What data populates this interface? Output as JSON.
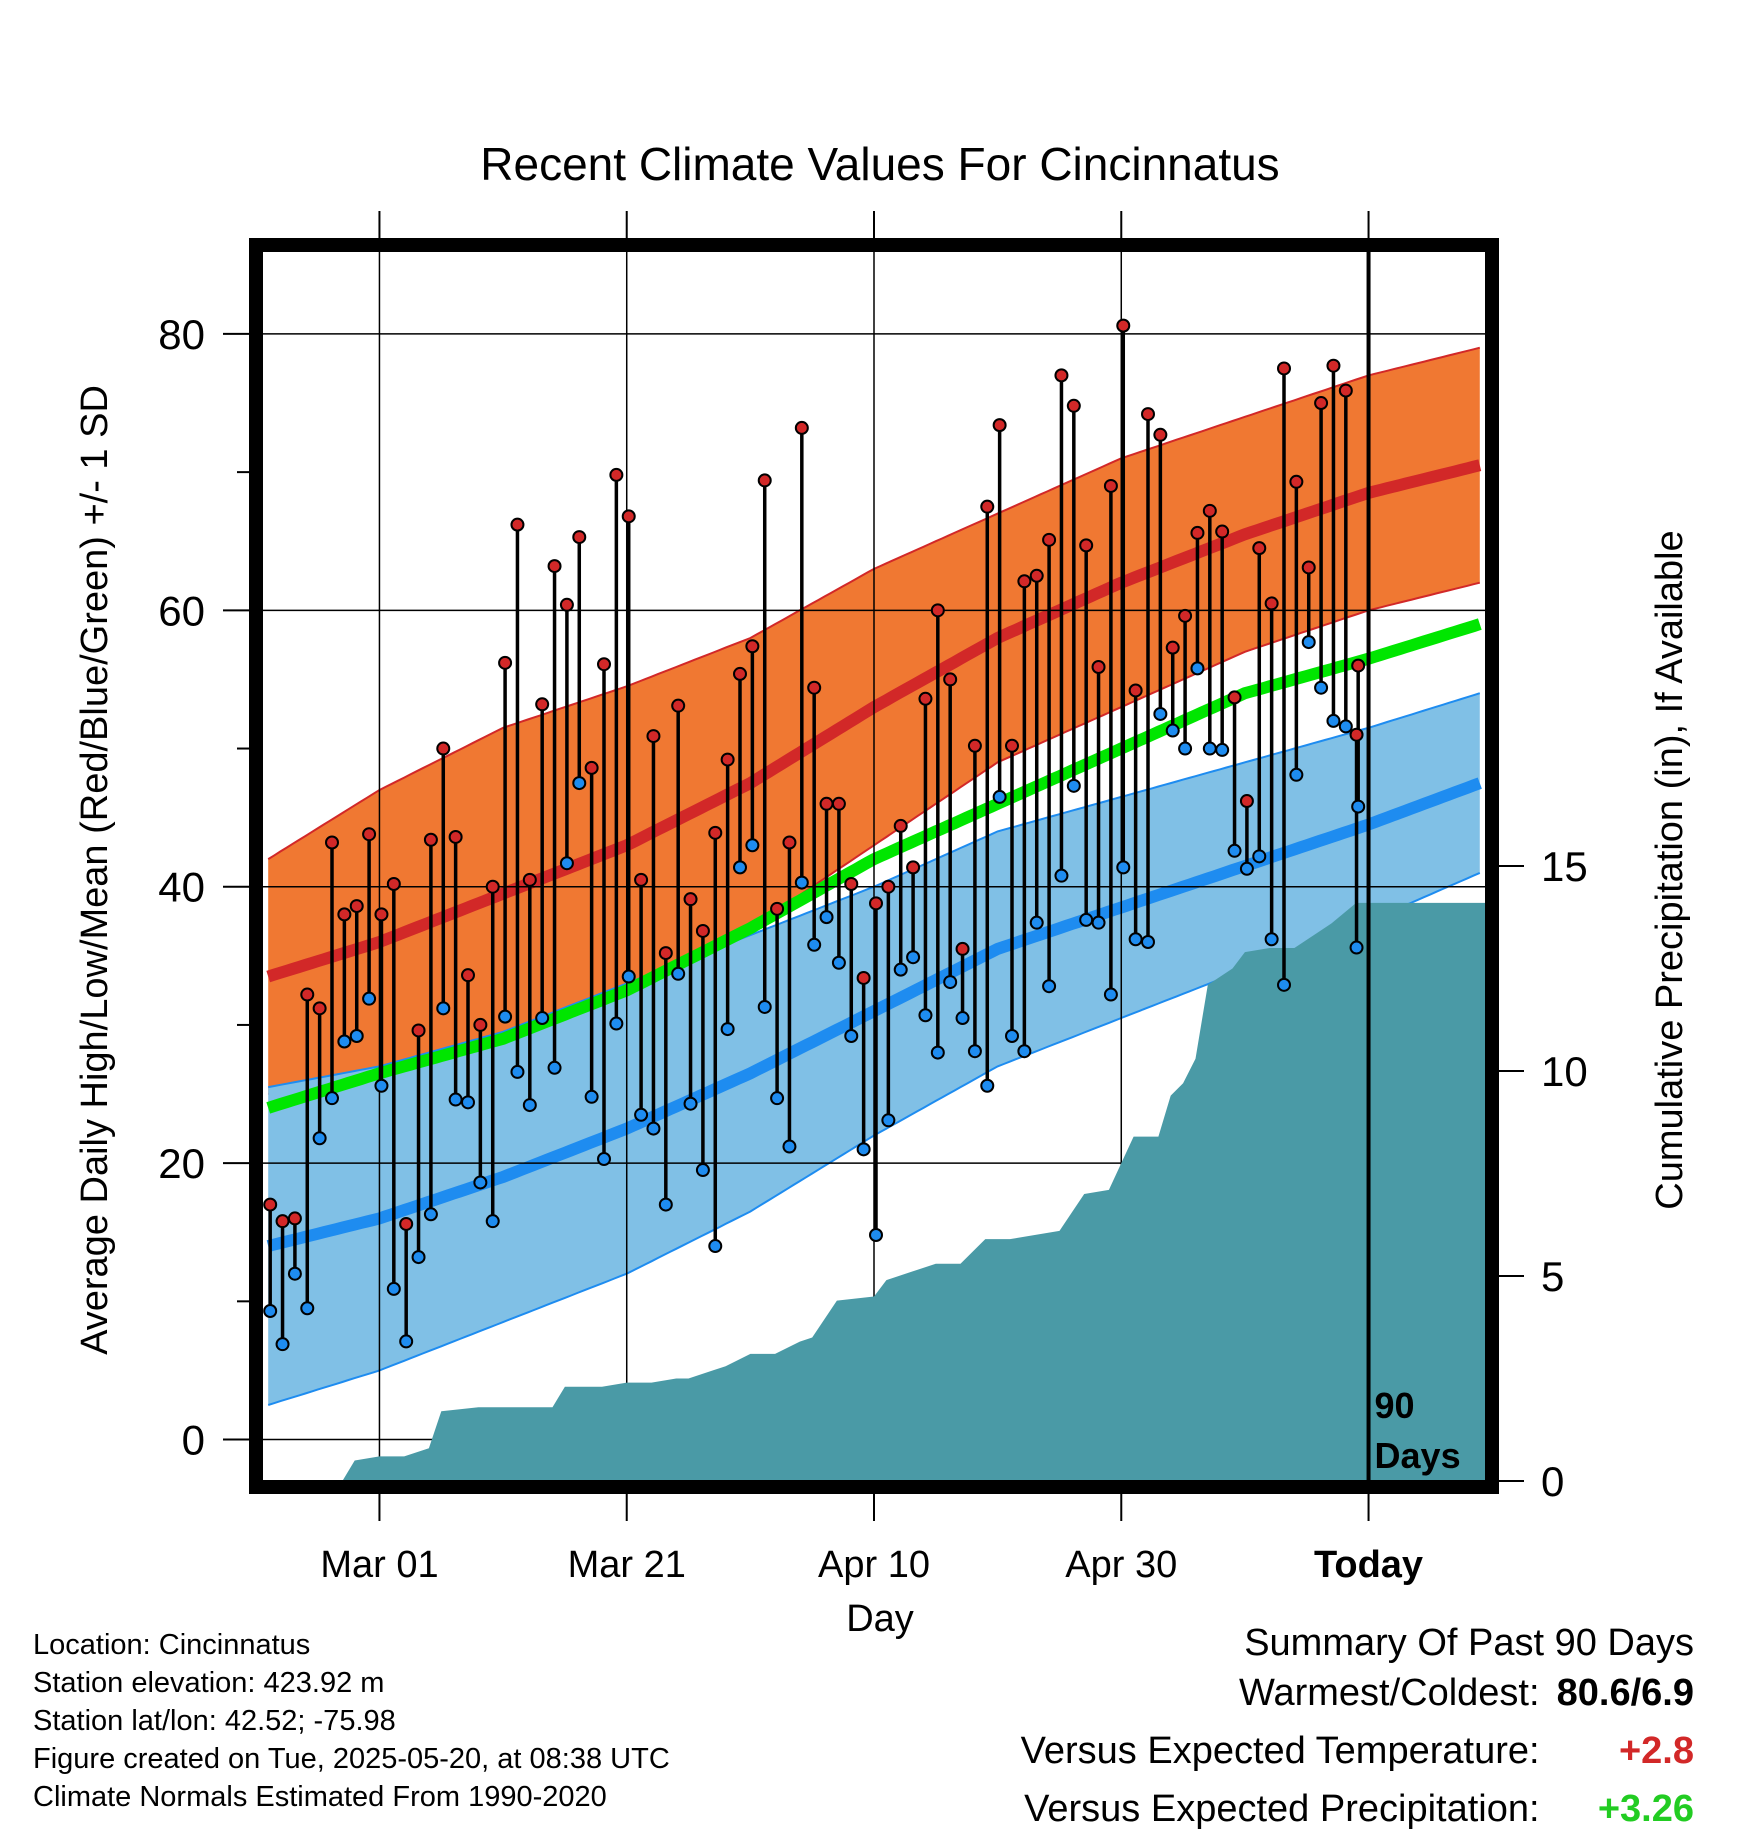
{
  "chart_data": {
    "type": "line",
    "title": "Recent Climate Values For Cincinnatus",
    "xlabel": "Day",
    "ylabel": "Average Daily High/Low/Mean (Red/Blue/Green) +/- 1 SD",
    "y2label": "Cumulative Precipitation (in), If Available",
    "ylim": [
      -3,
      86
    ],
    "y2lim": [
      0,
      30
    ],
    "xlim": [
      -89.5,
      9.5
    ],
    "yticks": [
      0,
      20,
      40,
      60,
      80
    ],
    "y2ticks": [
      0,
      5,
      10,
      15
    ],
    "xticks": [
      {
        "day": -80,
        "label": "Mar 01"
      },
      {
        "day": -60,
        "label": "Mar 21"
      },
      {
        "day": -40,
        "label": "Apr 10"
      },
      {
        "day": -20,
        "label": "Apr 30"
      },
      {
        "day": 0,
        "label": "Today"
      }
    ],
    "grid": true,
    "today_marker_label": "90 Days",
    "colors": {
      "high_band": "#f07832",
      "high_mean": "#d22828",
      "low_band": "#80c0e6",
      "low_mean": "#1e8cf0",
      "mean": "#00e600",
      "precip": "#4a9aa6",
      "high_dot": "#d22828",
      "low_dot": "#1e8cf0"
    },
    "normals": {
      "day": [
        -89,
        -80,
        -70,
        -60,
        -50,
        -40,
        -30,
        -20,
        -10,
        0,
        9
      ],
      "high_mean": [
        33.5,
        36.0,
        39.5,
        43.0,
        47.5,
        53.0,
        58.0,
        62.0,
        65.5,
        68.5,
        70.5
      ],
      "high_sd": [
        8.5,
        11.0,
        12.0,
        11.5,
        10.5,
        10.0,
        9.0,
        9.0,
        8.5,
        8.5,
        8.5
      ],
      "low_mean": [
        14.0,
        16.0,
        19.0,
        22.5,
        26.5,
        31.0,
        35.5,
        38.5,
        41.5,
        44.5,
        47.5
      ],
      "low_sd": [
        11.5,
        11.0,
        10.5,
        10.5,
        10.0,
        9.0,
        8.5,
        8.0,
        7.5,
        7.0,
        6.5
      ],
      "mean": [
        24.0,
        26.5,
        29.0,
        32.5,
        37.0,
        42.0,
        46.0,
        50.0,
        54.0,
        56.5,
        59.0
      ]
    },
    "series": [
      {
        "name": "High",
        "x": [
          -89,
          -88,
          -87,
          -86,
          -85,
          -84,
          -83,
          -82,
          -81,
          -80,
          -79,
          -78,
          -77,
          -76,
          -75,
          -74,
          -73,
          -72,
          -71,
          -70,
          -69,
          -68,
          -67,
          -66,
          -65,
          -64,
          -63,
          -62,
          -61,
          -60,
          -59,
          -58,
          -57,
          -56,
          -55,
          -54,
          -53,
          -52,
          -51,
          -50,
          -49,
          -48,
          -47,
          -46,
          -45,
          -44,
          -43,
          -42,
          -41,
          -40,
          -39,
          -38,
          -37,
          -36,
          -35,
          -34,
          -33,
          -32,
          -31,
          -30,
          -29,
          -28,
          -27,
          -26,
          -25,
          -24,
          -23,
          -22,
          -21,
          -20,
          -19,
          -18,
          -17,
          -16,
          -15,
          -14,
          -13,
          -12,
          -11,
          -10,
          -9,
          -8,
          -7,
          -6,
          -5,
          -4,
          -3,
          -2,
          -1
        ],
        "values": [
          17.0,
          15.8,
          16.0,
          32.2,
          31.2,
          43.2,
          38.0,
          38.6,
          43.8,
          38.0,
          40.2,
          15.6,
          29.6,
          43.4,
          50.0,
          43.6,
          33.6,
          30.0,
          40.0,
          56.2,
          66.2,
          40.5,
          53.2,
          63.2,
          60.4,
          65.3,
          48.6,
          56.1,
          69.8,
          66.8,
          40.5,
          50.9,
          35.2,
          53.1,
          39.1,
          36.8,
          43.9,
          49.2,
          55.4,
          57.4,
          69.4,
          38.4,
          43.2,
          73.2,
          54.4,
          46.0,
          46.0,
          40.2,
          33.4,
          38.8,
          40.0,
          44.4,
          41.4,
          53.6,
          60.0,
          55.0,
          35.5,
          50.2,
          67.5,
          73.4,
          50.2,
          62.1,
          62.5,
          65.1,
          77.0,
          74.8,
          64.7,
          55.9,
          69.0,
          80.6,
          54.2,
          74.2,
          72.7,
          57.3,
          59.6,
          65.6,
          67.2,
          65.7,
          53.7,
          46.2,
          64.5,
          60.5,
          77.5,
          69.3,
          63.1,
          75.0,
          77.7,
          75.9,
          56.0
        ]
      },
      {
        "name": "Low",
        "x": [
          -89,
          -88,
          -87,
          -86,
          -85,
          -84,
          -83,
          -82,
          -81,
          -80,
          -79,
          -78,
          -77,
          -76,
          -75,
          -74,
          -73,
          -72,
          -71,
          -70,
          -69,
          -68,
          -67,
          -66,
          -65,
          -64,
          -63,
          -62,
          -61,
          -60,
          -59,
          -58,
          -57,
          -56,
          -55,
          -54,
          -53,
          -52,
          -51,
          -50,
          -49,
          -48,
          -47,
          -46,
          -45,
          -44,
          -43,
          -42,
          -41,
          -40,
          -39,
          -38,
          -37,
          -36,
          -35,
          -34,
          -33,
          -32,
          -31,
          -30,
          -29,
          -28,
          -27,
          -26,
          -25,
          -24,
          -23,
          -22,
          -21,
          -20,
          -19,
          -18,
          -17,
          -16,
          -15,
          -14,
          -13,
          -12,
          -11,
          -10,
          -9,
          -8,
          -7,
          -6,
          -5,
          -4,
          -3,
          -2,
          -1
        ],
        "values": [
          9.3,
          6.9,
          12.0,
          9.5,
          21.8,
          24.7,
          28.8,
          29.2,
          31.9,
          25.6,
          10.9,
          7.1,
          13.2,
          16.3,
          31.2,
          24.6,
          24.4,
          18.6,
          15.8,
          30.6,
          26.6,
          24.2,
          30.5,
          26.9,
          41.7,
          47.5,
          24.8,
          20.3,
          30.1,
          33.5,
          23.5,
          22.5,
          17.0,
          33.7,
          24.3,
          19.5,
          14.0,
          29.7,
          41.4,
          43.0,
          31.3,
          24.7,
          21.2,
          40.3,
          35.8,
          37.8,
          34.5,
          29.2,
          21.0,
          14.8,
          23.1,
          34.0,
          34.9,
          30.7,
          28.0,
          33.1,
          30.5,
          28.1,
          25.6,
          46.5,
          29.2,
          28.1,
          37.4,
          32.8,
          40.8,
          47.3,
          37.6,
          37.4,
          32.2,
          41.4,
          36.2,
          36.0,
          52.5,
          51.3,
          50.0,
          55.8,
          50.0,
          49.9,
          42.6,
          41.3,
          42.2,
          36.2,
          32.9,
          48.1,
          57.7,
          54.4,
          52.0,
          51.6,
          45.8
        ]
      }
    ],
    "today": {
      "name": "High/Low (today)",
      "high": 51.0,
      "low": 35.6
    },
    "precipitation": {
      "x": [
        -89,
        -86,
        -83,
        -82,
        -80,
        -78,
        -76,
        -75,
        -72,
        -70,
        -68,
        -66,
        -65,
        -64,
        -62,
        -60,
        -58,
        -56,
        -55,
        -53,
        -52,
        -50,
        -48,
        -46,
        -45,
        -43,
        -40,
        -39,
        -37,
        -35,
        -33,
        -31,
        -29,
        -27,
        -25,
        -23,
        -21,
        -19,
        -17,
        -16,
        -15,
        -14,
        -13,
        -11,
        -10,
        -8,
        -6,
        -4,
        -3,
        -1,
        0,
        9
      ],
      "values": [
        0.0,
        0.0,
        0.0,
        0.5,
        0.6,
        0.6,
        0.8,
        1.7,
        1.8,
        1.8,
        1.8,
        1.8,
        2.3,
        2.3,
        2.3,
        2.4,
        2.4,
        2.5,
        2.5,
        2.7,
        2.8,
        3.1,
        3.1,
        3.4,
        3.5,
        4.4,
        4.5,
        4.9,
        5.1,
        5.3,
        5.3,
        5.9,
        5.9,
        6.0,
        6.1,
        7.0,
        7.1,
        8.4,
        8.4,
        9.4,
        9.7,
        10.3,
        12.1,
        12.5,
        12.9,
        13.0,
        13.0,
        13.4,
        13.6,
        14.1,
        14.1,
        14.1
      ]
    }
  },
  "footer": {
    "location": "Location: Cincinnatus",
    "elevation": "Station elevation: 423.92 m",
    "latlon": "Station lat/lon: 42.52; -75.98",
    "created": "Figure created on Tue, 2025-05-20, at 08:38 UTC",
    "normals": "Climate Normals Estimated From 1990-2020"
  },
  "summary": {
    "title": "Summary Of Past 90 Days",
    "warmest_label": "Warmest/Coldest:",
    "warmest_value": "80.6/6.9",
    "temp_label": "Versus Expected Temperature:",
    "temp_value": "+2.8",
    "temp_color": "#d22828",
    "precip_label": "Versus Expected Precipitation:",
    "precip_value": "+3.26",
    "precip_color": "#22cc22"
  }
}
